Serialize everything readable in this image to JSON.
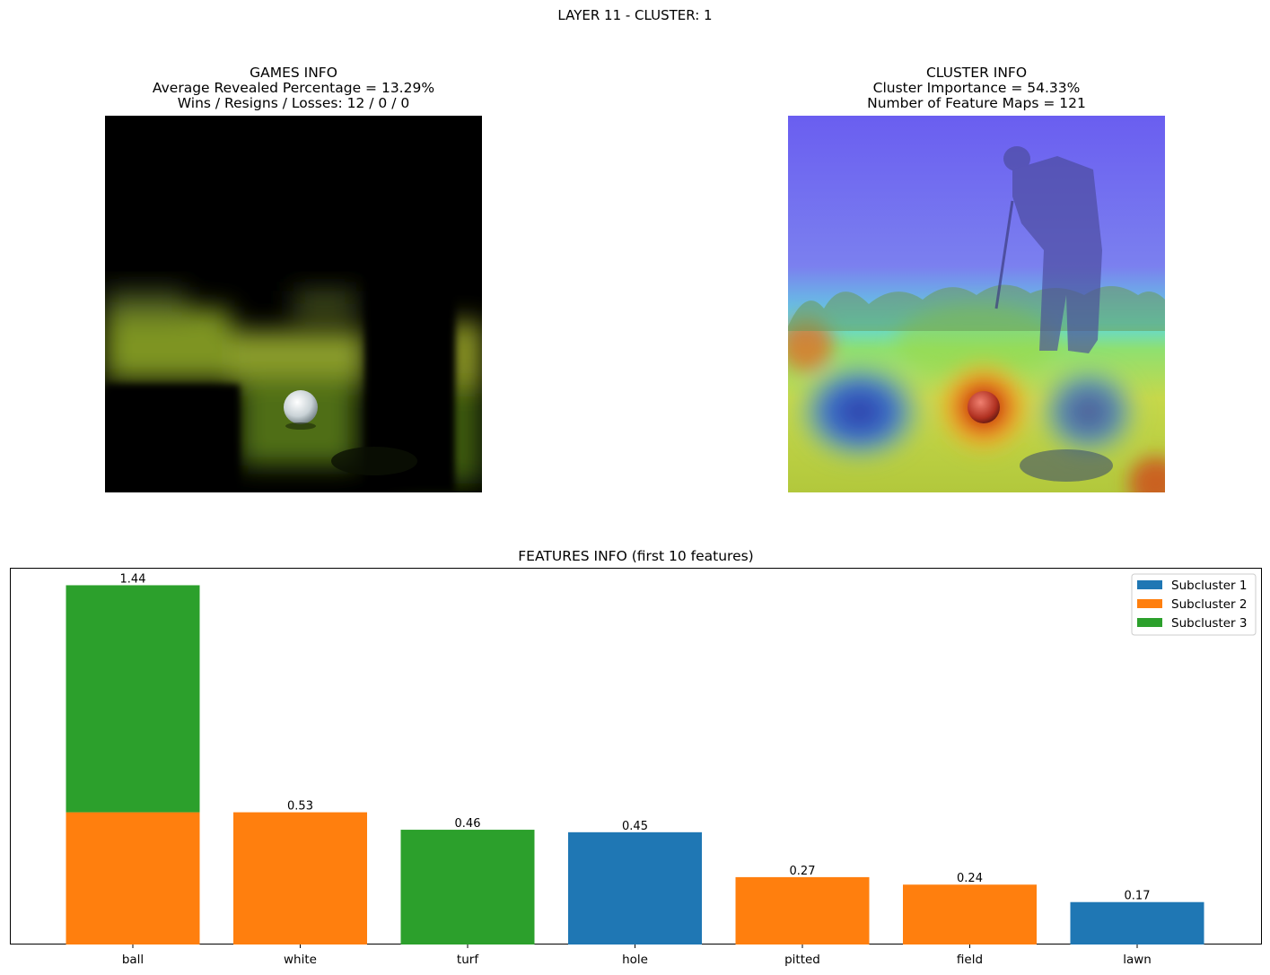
{
  "suptitle": "LAYER 11 - CLUSTER: 1",
  "games_info": {
    "title": "GAMES INFO",
    "line1": "Average Revealed Percentage = 13.29%",
    "line2": "Wins / Resigns / Losses: 12 / 0 / 0"
  },
  "cluster_info": {
    "title": "CLUSTER INFO",
    "line1": "Cluster Importance = 54.33%",
    "line2": "Number of Feature Maps = 121"
  },
  "colors": {
    "subcluster_1": "#1f77b4",
    "subcluster_2": "#ff7f0e",
    "subcluster_3": "#2ca02c"
  },
  "chart_data": {
    "type": "bar",
    "stacked": true,
    "title": "FEATURES INFO (first 10 features)",
    "xlabel": "",
    "ylabel": "",
    "y_ticks_shown": false,
    "ylim": [
      0,
      1.51
    ],
    "legend_position": "top-right",
    "categories": [
      "ball",
      "white",
      "turf",
      "hole",
      "pitted",
      "field",
      "lawn"
    ],
    "series": [
      {
        "name": "Subcluster 1",
        "color": "#1f77b4",
        "values": [
          0,
          0,
          0,
          0.45,
          0,
          0,
          0.17
        ]
      },
      {
        "name": "Subcluster 2",
        "color": "#ff7f0e",
        "values": [
          0.53,
          0.53,
          0,
          0,
          0.27,
          0.24,
          0
        ]
      },
      {
        "name": "Subcluster 3",
        "color": "#2ca02c",
        "values": [
          0.91,
          0,
          0.46,
          0,
          0,
          0,
          0
        ]
      }
    ],
    "bar_labels": [
      "1.44",
      "0.53",
      "0.46",
      "0.45",
      "0.27",
      "0.24",
      "0.17"
    ]
  }
}
